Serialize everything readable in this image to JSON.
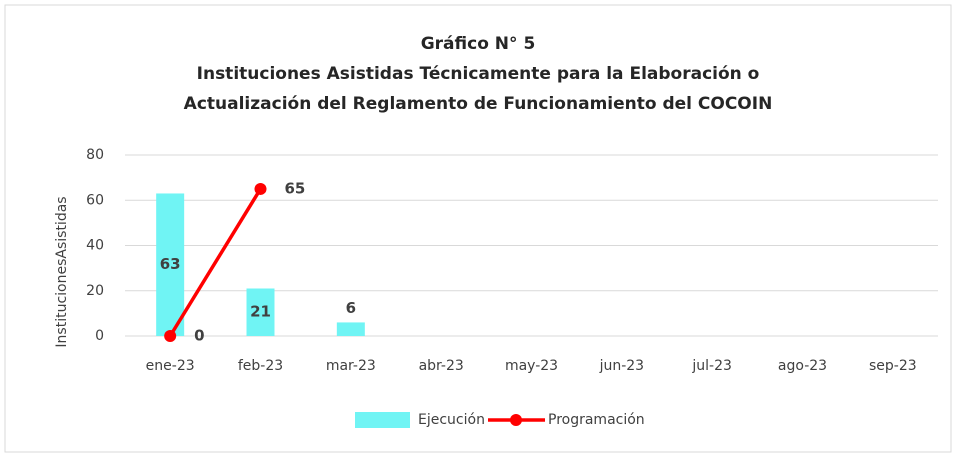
{
  "chart_data": {
    "type": "combo",
    "title": [
      "Gráfico  N° 5",
      "Instituciones  Asistidas  Técnicamente  para  la  Elaboración  o",
      "Actualización  del Reglamento de Funcionamiento  del COCOIN"
    ],
    "y_label": "InstitucionesAsistidas",
    "categories": [
      "ene-23",
      "feb-23",
      "mar-23",
      "abr-23",
      "may-23",
      "jun-23",
      "jul-23",
      "ago-23",
      "sep-23"
    ],
    "series": [
      {
        "name": "Ejecución",
        "type": "bar",
        "color": "#70f4f4",
        "values": [
          63,
          21,
          6,
          null,
          null,
          null,
          null,
          null,
          null
        ]
      },
      {
        "name": "Programación",
        "type": "line",
        "color": "#ff0000",
        "values": [
          0,
          65,
          null,
          null,
          null,
          null,
          null,
          null,
          null
        ]
      }
    ],
    "ylim": [
      0,
      80
    ],
    "yticks": [
      0,
      20,
      40,
      60,
      80
    ],
    "grid": true,
    "legend": "bottom"
  }
}
